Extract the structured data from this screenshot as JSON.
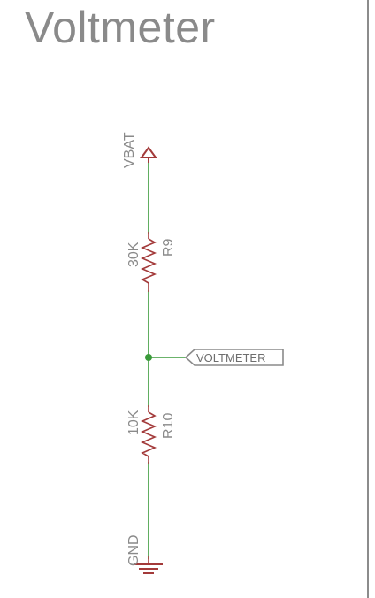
{
  "title": "Voltmeter",
  "colors": {
    "wire": "#3a9a3a",
    "component": "#a33a3a",
    "text": "#8a8a8a",
    "border": "#8c8c8c"
  },
  "supply": {
    "label": "VBAT"
  },
  "r9": {
    "value": "30K",
    "name": "R9"
  },
  "r10": {
    "value": "10K",
    "name": "R10"
  },
  "net_label": {
    "text": "VOLTMETER"
  },
  "ground": {
    "label": "GND"
  }
}
